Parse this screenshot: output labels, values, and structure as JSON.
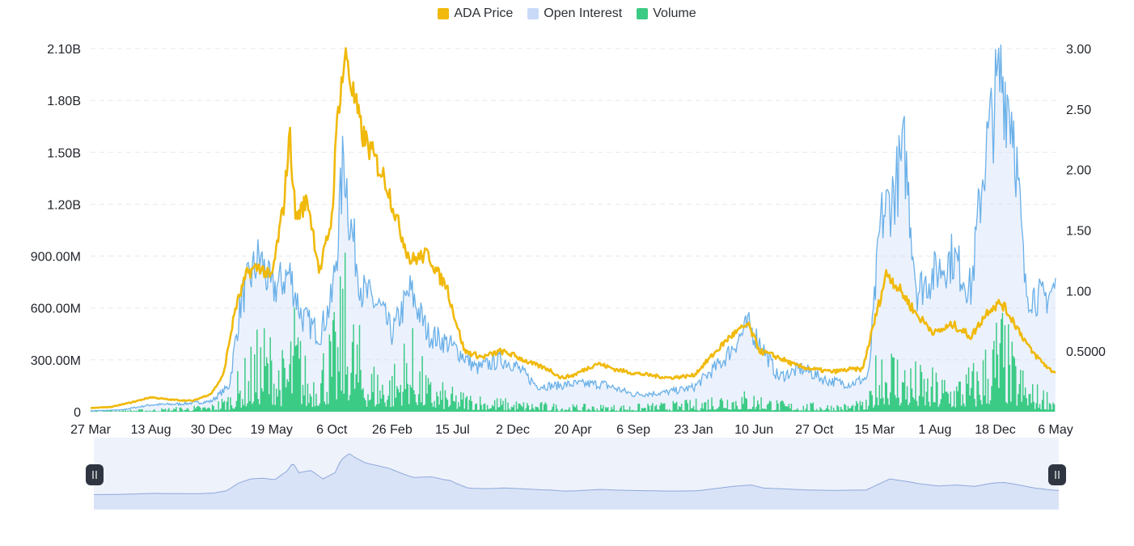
{
  "legend": {
    "price_label": "ADA Price",
    "oi_label": "Open Interest",
    "volume_label": "Volume"
  },
  "colors": {
    "price": "#F0B90B",
    "open_interest_line": "#6AB0E8",
    "open_interest_fill": "#C9DAF8",
    "volume": "#3CCB85",
    "navigator_fill": "#D9E3F7",
    "navigator_line": "#8FA8DA",
    "navigator_bg": "#EEF2FB",
    "handle": "#2F3541",
    "grid": "#E6E8EA"
  },
  "chart_data": {
    "type": "line",
    "x_tick_labels": [
      "27 Mar",
      "13 Aug",
      "30 Dec",
      "19 May",
      "6 Oct",
      "26 Feb",
      "15 Jul",
      "2 Dec",
      "20 Apr",
      "6 Sep",
      "23 Jan",
      "10 Jun",
      "27 Oct",
      "15 Mar",
      "1 Aug",
      "18 Dec",
      "6 May"
    ],
    "left_axis": {
      "ticks": [
        "0",
        "300.00M",
        "600.00M",
        "900.00M",
        "1.20B",
        "1.50B",
        "1.80B",
        "2.10B"
      ],
      "ylim": [
        0,
        2100000000
      ]
    },
    "right_axis": {
      "ticks": [
        "0.5000",
        "1.00",
        "1.50",
        "2.00",
        "2.50",
        "3.00"
      ],
      "ylim": [
        0,
        3.0
      ]
    },
    "grid": true,
    "legend_position": "top-center",
    "series": [
      {
        "name": "ADA Price",
        "axis": "right",
        "values": [
          [
            0,
            0.03
          ],
          [
            0.35,
            0.04
          ],
          [
            0.7,
            0.08
          ],
          [
            1.0,
            0.12
          ],
          [
            1.3,
            0.1
          ],
          [
            1.7,
            0.09
          ],
          [
            2.0,
            0.15
          ],
          [
            2.2,
            0.3
          ],
          [
            2.4,
            0.85
          ],
          [
            2.6,
            1.15
          ],
          [
            2.8,
            1.2
          ],
          [
            3.0,
            1.1
          ],
          [
            3.2,
            1.7
          ],
          [
            3.3,
            2.3
          ],
          [
            3.4,
            1.6
          ],
          [
            3.6,
            1.75
          ],
          [
            3.8,
            1.15
          ],
          [
            4.0,
            1.6
          ],
          [
            4.1,
            2.5
          ],
          [
            4.2,
            2.85
          ],
          [
            4.25,
            2.95
          ],
          [
            4.3,
            2.75
          ],
          [
            4.5,
            2.3
          ],
          [
            4.7,
            2.1
          ],
          [
            4.9,
            1.9
          ],
          [
            5.1,
            1.55
          ],
          [
            5.3,
            1.25
          ],
          [
            5.6,
            1.3
          ],
          [
            5.8,
            1.1
          ],
          [
            5.9,
            1.05
          ],
          [
            6.0,
            0.85
          ],
          [
            6.2,
            0.5
          ],
          [
            6.5,
            0.45
          ],
          [
            6.8,
            0.5
          ],
          [
            7.0,
            0.47
          ],
          [
            7.3,
            0.4
          ],
          [
            7.6,
            0.35
          ],
          [
            7.8,
            0.28
          ],
          [
            8.0,
            0.3
          ],
          [
            8.4,
            0.4
          ],
          [
            8.7,
            0.35
          ],
          [
            9.0,
            0.32
          ],
          [
            9.3,
            0.3
          ],
          [
            9.6,
            0.28
          ],
          [
            10.0,
            0.3
          ],
          [
            10.3,
            0.46
          ],
          [
            10.6,
            0.62
          ],
          [
            10.9,
            0.72
          ],
          [
            11.1,
            0.5
          ],
          [
            11.4,
            0.45
          ],
          [
            11.7,
            0.38
          ],
          [
            12.0,
            0.35
          ],
          [
            12.3,
            0.33
          ],
          [
            12.6,
            0.35
          ],
          [
            12.8,
            0.35
          ],
          [
            13.0,
            0.75
          ],
          [
            13.2,
            1.15
          ],
          [
            13.5,
            0.95
          ],
          [
            13.7,
            0.8
          ],
          [
            14.0,
            0.65
          ],
          [
            14.3,
            0.72
          ],
          [
            14.6,
            0.62
          ],
          [
            14.9,
            0.85
          ],
          [
            15.1,
            0.9
          ],
          [
            15.3,
            0.75
          ],
          [
            15.6,
            0.5
          ],
          [
            15.9,
            0.35
          ],
          [
            16.2,
            0.27
          ],
          [
            16.6,
            0.25
          ],
          [
            17.0,
            0.25
          ]
        ]
      },
      {
        "name": "Open Interest",
        "axis": "left",
        "values": [
          [
            0,
            5000000
          ],
          [
            0.5,
            10000000
          ],
          [
            1.0,
            40000000
          ],
          [
            1.5,
            45000000
          ],
          [
            2.0,
            60000000
          ],
          [
            2.3,
            150000000
          ],
          [
            2.5,
            650000000
          ],
          [
            2.8,
            900000000
          ],
          [
            3.0,
            700000000
          ],
          [
            3.3,
            800000000
          ],
          [
            3.5,
            550000000
          ],
          [
            3.8,
            450000000
          ],
          [
            4.0,
            650000000
          ],
          [
            4.1,
            1000000000
          ],
          [
            4.2,
            1500000000
          ],
          [
            4.3,
            1100000000
          ],
          [
            4.5,
            700000000
          ],
          [
            4.8,
            600000000
          ],
          [
            5.0,
            450000000
          ],
          [
            5.3,
            700000000
          ],
          [
            5.6,
            450000000
          ],
          [
            5.9,
            400000000
          ],
          [
            6.1,
            350000000
          ],
          [
            6.4,
            250000000
          ],
          [
            6.8,
            300000000
          ],
          [
            7.0,
            280000000
          ],
          [
            7.4,
            150000000
          ],
          [
            7.7,
            150000000
          ],
          [
            8.0,
            160000000
          ],
          [
            8.5,
            160000000
          ],
          [
            9.0,
            100000000
          ],
          [
            9.5,
            110000000
          ],
          [
            10.0,
            140000000
          ],
          [
            10.5,
            300000000
          ],
          [
            10.9,
            500000000
          ],
          [
            11.1,
            400000000
          ],
          [
            11.4,
            200000000
          ],
          [
            11.8,
            250000000
          ],
          [
            12.2,
            180000000
          ],
          [
            12.6,
            160000000
          ],
          [
            12.9,
            200000000
          ],
          [
            13.1,
            1100000000
          ],
          [
            13.3,
            1250000000
          ],
          [
            13.5,
            1500000000
          ],
          [
            13.7,
            700000000
          ],
          [
            14.0,
            800000000
          ],
          [
            14.3,
            900000000
          ],
          [
            14.6,
            700000000
          ],
          [
            14.8,
            1400000000
          ],
          [
            15.0,
            1800000000
          ],
          [
            15.1,
            1950000000
          ],
          [
            15.3,
            1700000000
          ],
          [
            15.5,
            700000000
          ],
          [
            15.8,
            650000000
          ],
          [
            16.1,
            750000000
          ],
          [
            16.4,
            450000000
          ],
          [
            16.7,
            450000000
          ],
          [
            17.0,
            550000000
          ]
        ]
      },
      {
        "name": "Volume",
        "axis": "left",
        "values": [
          [
            0,
            3000000
          ],
          [
            1.0,
            10000000
          ],
          [
            2.0,
            25000000
          ],
          [
            2.3,
            70000000
          ],
          [
            2.6,
            200000000
          ],
          [
            2.9,
            320000000
          ],
          [
            3.2,
            200000000
          ],
          [
            3.4,
            380000000
          ],
          [
            3.6,
            150000000
          ],
          [
            4.1,
            350000000
          ],
          [
            4.2,
            550000000
          ],
          [
            4.3,
            400000000
          ],
          [
            4.6,
            180000000
          ],
          [
            5.0,
            160000000
          ],
          [
            5.3,
            300000000
          ],
          [
            5.6,
            120000000
          ],
          [
            6.0,
            80000000
          ],
          [
            6.5,
            60000000
          ],
          [
            7.0,
            40000000
          ],
          [
            8.0,
            25000000
          ],
          [
            9.0,
            25000000
          ],
          [
            10.0,
            40000000
          ],
          [
            10.5,
            80000000
          ],
          [
            11.0,
            70000000
          ],
          [
            11.5,
            35000000
          ],
          [
            12.0,
            30000000
          ],
          [
            12.5,
            30000000
          ],
          [
            12.9,
            40000000
          ],
          [
            13.1,
            300000000
          ],
          [
            13.3,
            250000000
          ],
          [
            13.5,
            200000000
          ],
          [
            13.8,
            150000000
          ],
          [
            14.3,
            130000000
          ],
          [
            14.7,
            180000000
          ],
          [
            15.1,
            380000000
          ],
          [
            15.3,
            220000000
          ],
          [
            15.6,
            100000000
          ],
          [
            16.0,
            70000000
          ],
          [
            16.5,
            45000000
          ],
          [
            17.0,
            40000000
          ]
        ]
      }
    ]
  }
}
